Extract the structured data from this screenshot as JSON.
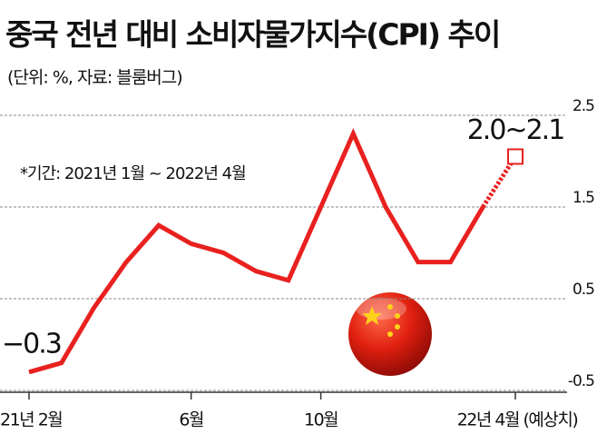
{
  "chart_data": {
    "type": "line",
    "title": "중국 전년 대비 소비자물가지수(CPI) 추이",
    "subtitle": "(단위: %, 자료: 블룸버그)",
    "annotation": "*기간: 2021년 1월 ~ 2022년 4월",
    "categories": [
      "21년 2월",
      null,
      null,
      null,
      null,
      "6월",
      null,
      null,
      null,
      "10월",
      null,
      null,
      null,
      null,
      null,
      "22년 4월 (예상치)"
    ],
    "series": [
      {
        "color": "#e8211f",
        "values": [
          -0.3,
          -0.2,
          0.4,
          0.9,
          1.3,
          1.1,
          1.0,
          0.8,
          0.7,
          1.5,
          2.3,
          1.5,
          0.9,
          0.9,
          1.5,
          2.05
        ],
        "value_labels": [
          "−0.3",
          null,
          null,
          null,
          null,
          null,
          null,
          null,
          null,
          null,
          null,
          null,
          null,
          null,
          null,
          "2.0~2.1"
        ]
      }
    ],
    "dashed_last_segment": true,
    "ylim": [
      -0.5,
      2.5
    ],
    "yticks": [
      2.5,
      1.5,
      0.5,
      -0.5
    ],
    "grid": true
  }
}
